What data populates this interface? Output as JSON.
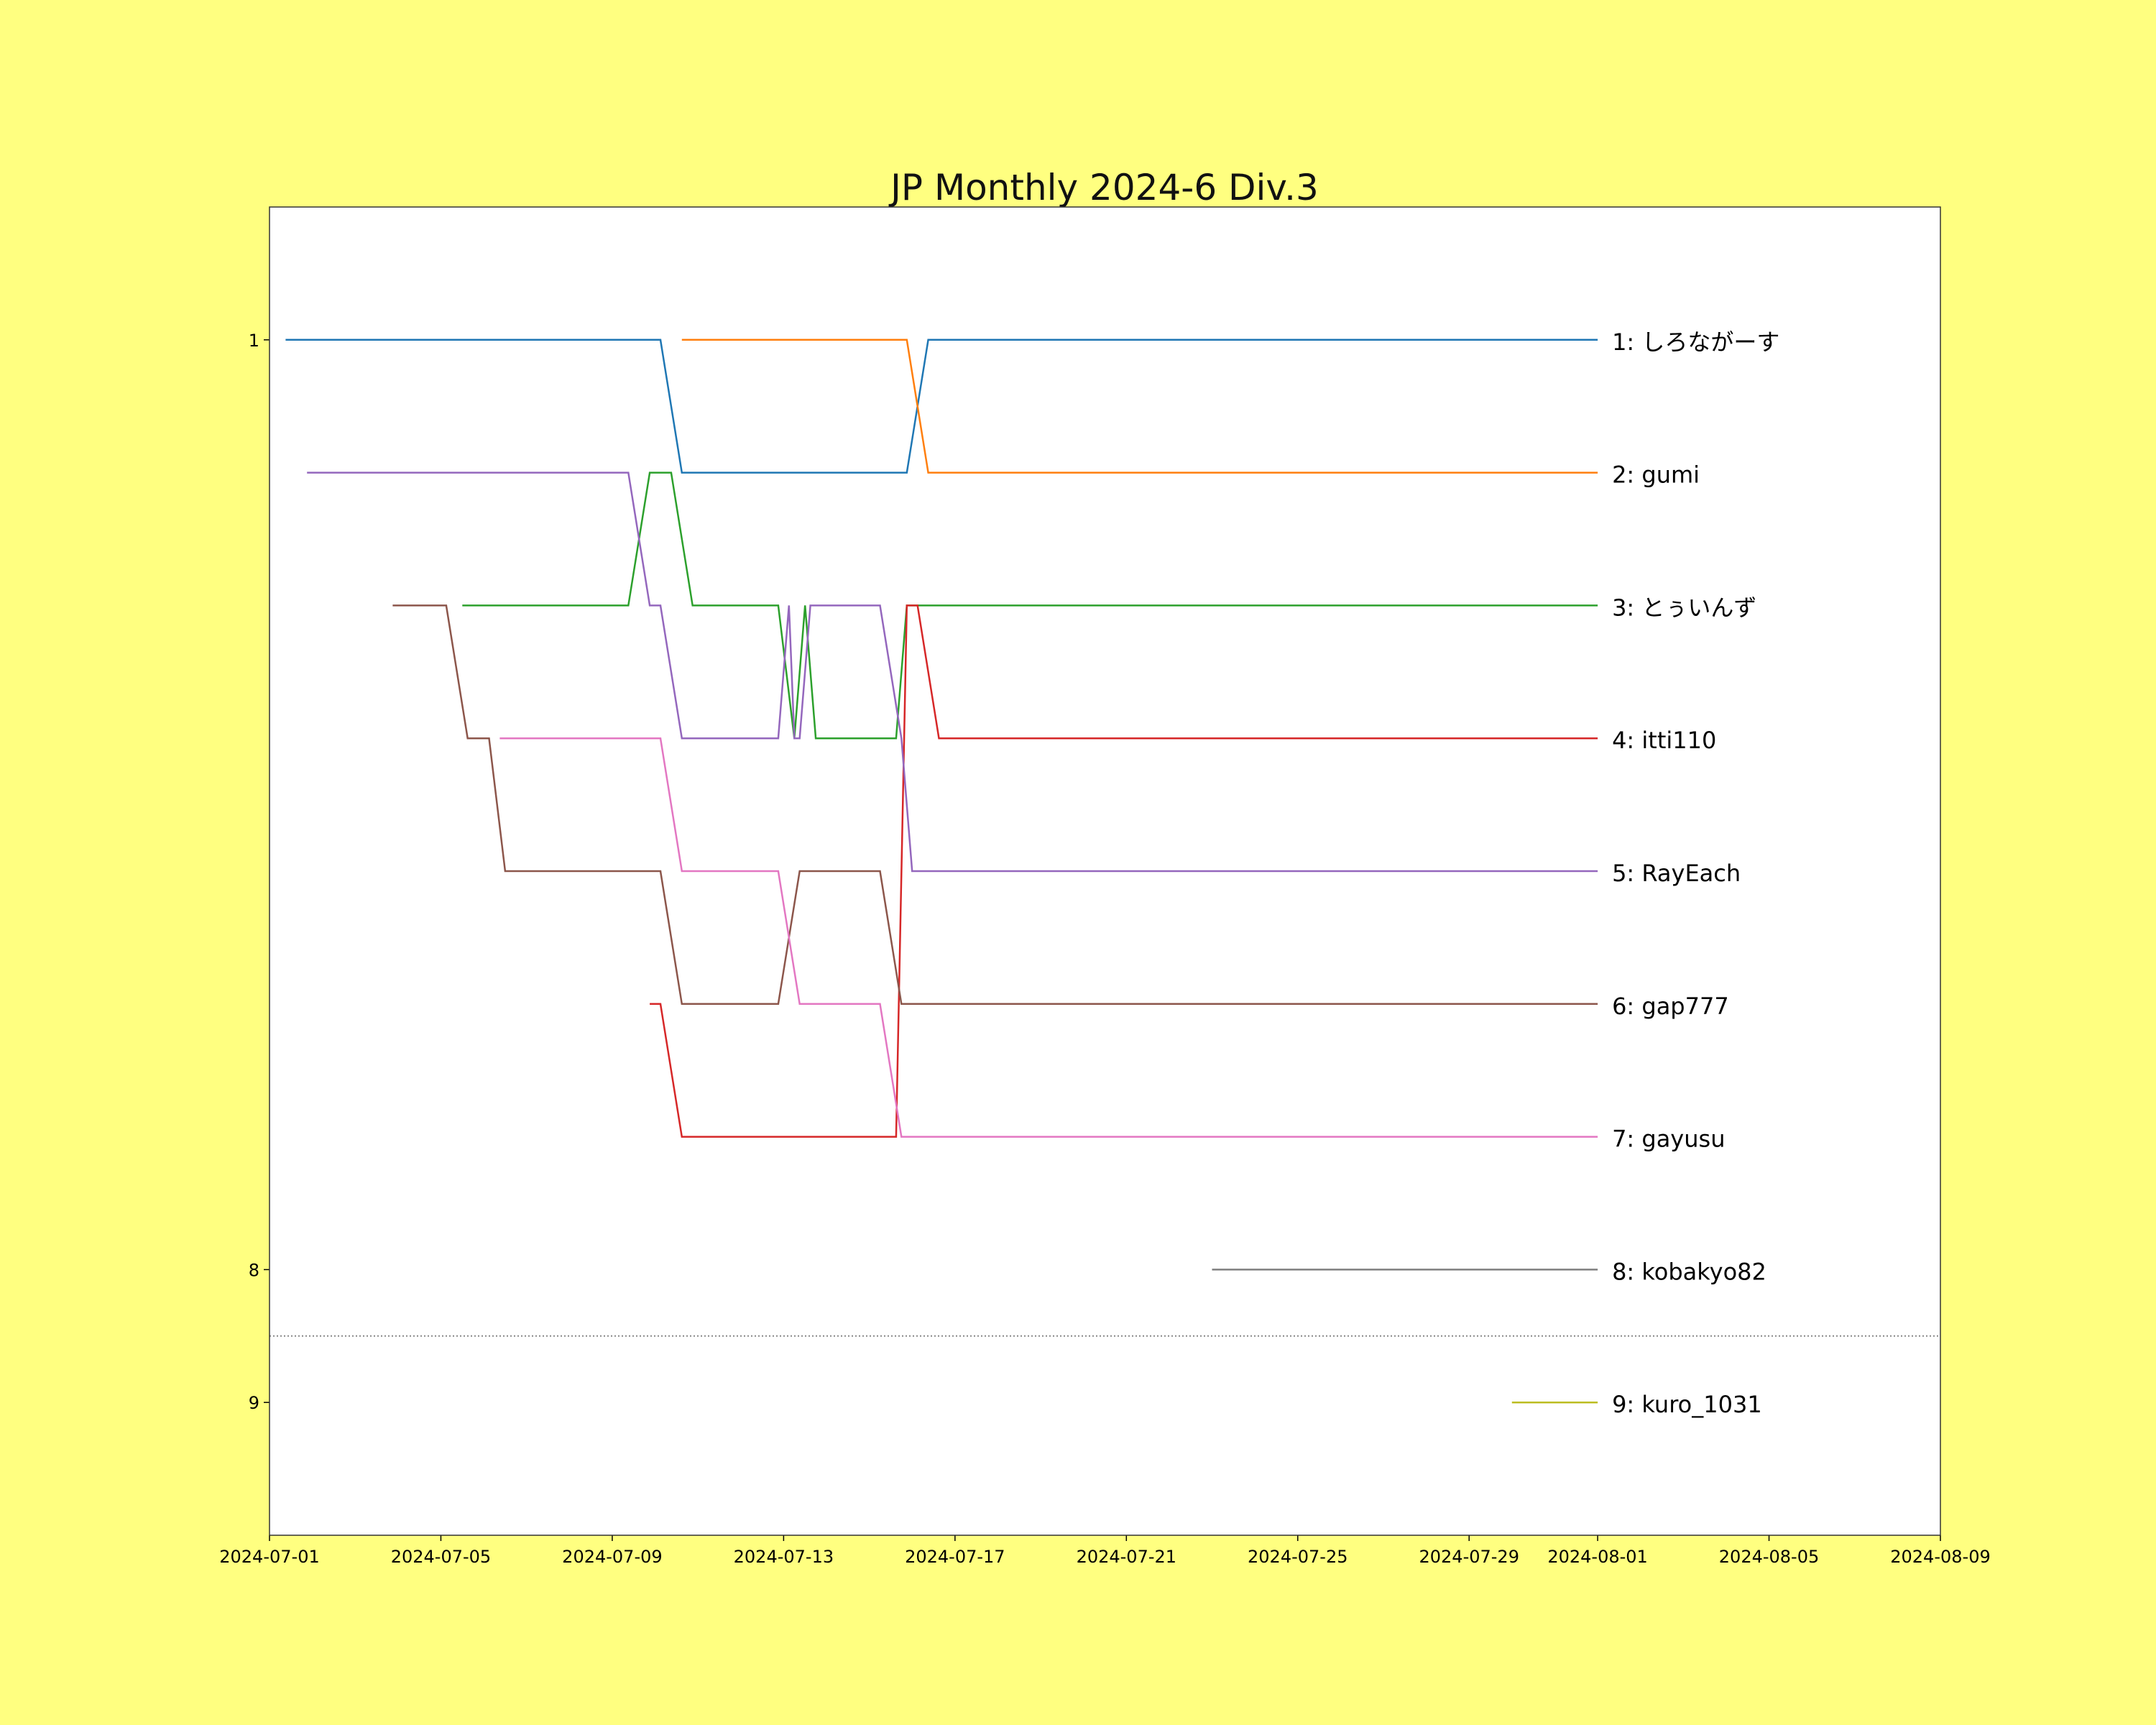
{
  "colors": {
    "page_background": "#ffff80",
    "plot_background": "#ffffff",
    "axis": "#333333",
    "promotion_line": "#888888"
  },
  "chart_data": {
    "type": "line",
    "title": "JP Monthly 2024-6 Div.3",
    "xlabel": "",
    "ylabel": "",
    "x_axis_type": "date",
    "xlim": [
      "2024-07-01",
      "2024-08-09"
    ],
    "x_ticks": [
      "2024-07-01",
      "2024-07-05",
      "2024-07-09",
      "2024-07-13",
      "2024-07-17",
      "2024-07-21",
      "2024-07-25",
      "2024-07-29",
      "2024-08-01",
      "2024-08-05",
      "2024-08-09"
    ],
    "y_axis": "rank",
    "y_inverted": true,
    "ylim": [
      10,
      0
    ],
    "y_ticks": [
      1,
      8,
      9
    ],
    "grid": false,
    "horizontal_reference_line": {
      "y": 8.5,
      "style": "dotted"
    },
    "series": [
      {
        "name": "1: しろながーす",
        "color": "#1f77b4",
        "points": [
          [
            "2024-07-01 09:00",
            1
          ],
          [
            "2024-07-10 03:00",
            1
          ],
          [
            "2024-07-10 15:00",
            2
          ],
          [
            "2024-07-15 21:00",
            2
          ],
          [
            "2024-07-16 09:00",
            1
          ],
          [
            "2024-08-01 00:00",
            1
          ]
        ]
      },
      {
        "name": "2: gumi",
        "color": "#ff7f0e",
        "points": [
          [
            "2024-07-10 15:00",
            1
          ],
          [
            "2024-07-15 21:00",
            1
          ],
          [
            "2024-07-16 09:00",
            2
          ],
          [
            "2024-08-01 00:00",
            2
          ]
        ]
      },
      {
        "name": "3: とぅいんず",
        "color": "#2ca02c",
        "points": [
          [
            "2024-07-05 12:00",
            3
          ],
          [
            "2024-07-09 09:00",
            3
          ],
          [
            "2024-07-09 21:00",
            2
          ],
          [
            "2024-07-10 09:00",
            2
          ],
          [
            "2024-07-10 21:00",
            3
          ],
          [
            "2024-07-12 21:00",
            3
          ],
          [
            "2024-07-13 06:00",
            4
          ],
          [
            "2024-07-13 12:00",
            3
          ],
          [
            "2024-07-13 18:00",
            4
          ],
          [
            "2024-07-15 15:00",
            4
          ],
          [
            "2024-07-15 21:00",
            3
          ],
          [
            "2024-07-16 09:00",
            3
          ],
          [
            "2024-08-01 00:00",
            3
          ]
        ]
      },
      {
        "name": "4: itti110",
        "color": "#d62728",
        "points": [
          [
            "2024-07-09 21:00",
            6
          ],
          [
            "2024-07-10 03:00",
            6
          ],
          [
            "2024-07-10 15:00",
            7
          ],
          [
            "2024-07-15 15:00",
            7
          ],
          [
            "2024-07-15 21:00",
            3
          ],
          [
            "2024-07-16 03:00",
            3
          ],
          [
            "2024-07-16 15:00",
            4
          ],
          [
            "2024-08-01 00:00",
            4
          ]
        ]
      },
      {
        "name": "5: RayEach",
        "color": "#9467bd",
        "points": [
          [
            "2024-07-01 21:00",
            2
          ],
          [
            "2024-07-09 09:00",
            2
          ],
          [
            "2024-07-09 21:00",
            3
          ],
          [
            "2024-07-10 03:00",
            3
          ],
          [
            "2024-07-10 15:00",
            4
          ],
          [
            "2024-07-12 21:00",
            4
          ],
          [
            "2024-07-13 03:00",
            3
          ],
          [
            "2024-07-13 06:00",
            4
          ],
          [
            "2024-07-13 09:00",
            4
          ],
          [
            "2024-07-13 15:00",
            3
          ],
          [
            "2024-07-15 06:00",
            3
          ],
          [
            "2024-07-15 18:00",
            4
          ],
          [
            "2024-07-16 00:00",
            5
          ],
          [
            "2024-08-01 00:00",
            5
          ]
        ]
      },
      {
        "name": "6: gap777",
        "color": "#8c564b",
        "points": [
          [
            "2024-07-03 21:00",
            3
          ],
          [
            "2024-07-05 03:00",
            3
          ],
          [
            "2024-07-05 15:00",
            4
          ],
          [
            "2024-07-06 03:00",
            4
          ],
          [
            "2024-07-06 12:00",
            5
          ],
          [
            "2024-07-10 03:00",
            5
          ],
          [
            "2024-07-10 15:00",
            6
          ],
          [
            "2024-07-12 21:00",
            6
          ],
          [
            "2024-07-13 09:00",
            5
          ],
          [
            "2024-07-15 06:00",
            5
          ],
          [
            "2024-07-15 18:00",
            6
          ],
          [
            "2024-08-01 00:00",
            6
          ]
        ]
      },
      {
        "name": "7: gayusu",
        "color": "#e377c2",
        "points": [
          [
            "2024-07-06 09:00",
            4
          ],
          [
            "2024-07-10 03:00",
            4
          ],
          [
            "2024-07-10 15:00",
            5
          ],
          [
            "2024-07-12 21:00",
            5
          ],
          [
            "2024-07-13 09:00",
            6
          ],
          [
            "2024-07-15 06:00",
            6
          ],
          [
            "2024-07-15 18:00",
            7
          ],
          [
            "2024-08-01 00:00",
            7
          ]
        ]
      },
      {
        "name": "8: kobakyo82",
        "color": "#7f7f7f",
        "points": [
          [
            "2024-07-23 00:00",
            8
          ],
          [
            "2024-08-01 00:00",
            8
          ]
        ]
      },
      {
        "name": "9: kuro_1031",
        "color": "#bcbd22",
        "points": [
          [
            "2024-07-30 00:00",
            9
          ],
          [
            "2024-08-01 00:00",
            9
          ]
        ]
      }
    ]
  }
}
